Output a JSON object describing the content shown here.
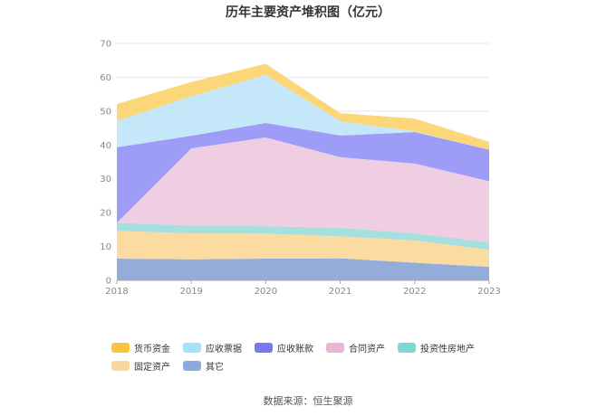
{
  "chart_data": {
    "type": "area",
    "stacked": true,
    "title": "历年主要资产堆积图（亿元）",
    "x": [
      "2018",
      "2019",
      "2020",
      "2021",
      "2022",
      "2023"
    ],
    "ylim": [
      0,
      70
    ],
    "yticks": [
      0,
      10,
      20,
      30,
      40,
      50,
      60,
      70
    ],
    "grid": true,
    "legend_position": "bottom",
    "series": [
      {
        "name": "其它",
        "color": "#93acd9",
        "values": [
          6.4,
          6.2,
          6.4,
          6.5,
          5.2,
          4.0
        ]
      },
      {
        "name": "固定资产",
        "color": "#fbdba0",
        "values": [
          8.2,
          7.7,
          7.4,
          6.5,
          6.6,
          5.0
        ]
      },
      {
        "name": "投资性房地产",
        "color": "#a6e0de",
        "values": [
          2.4,
          2.3,
          2.2,
          2.5,
          2.1,
          2.2
        ]
      },
      {
        "name": "合同资产",
        "color": "#efcde3",
        "values": [
          0.0,
          22.8,
          26.2,
          20.9,
          20.6,
          18.1
        ]
      },
      {
        "name": "应收账款",
        "color": "#9d9cf6",
        "values": [
          22.3,
          3.7,
          4.3,
          6.4,
          9.3,
          9.3
        ]
      },
      {
        "name": "应收票据",
        "color": "#c4e8fa",
        "values": [
          7.8,
          11.7,
          14.2,
          4.2,
          0.2,
          0.0
        ]
      },
      {
        "name": "货币资金",
        "color": "#fcd77a",
        "values": [
          5.0,
          4.2,
          3.3,
          2.4,
          3.8,
          2.3
        ]
      }
    ]
  },
  "legend": {
    "items": [
      {
        "label": "货币资金",
        "color": "#fbc33e"
      },
      {
        "label": "应收票据",
        "color": "#a8e0fb"
      },
      {
        "label": "应收账款",
        "color": "#7879ef"
      },
      {
        "label": "合同资产",
        "color": "#e9b7d6"
      },
      {
        "label": "投资性房地产",
        "color": "#7fd6d2"
      },
      {
        "label": "固定资产",
        "color": "#fcd79b"
      },
      {
        "label": "其它",
        "color": "#8da8da"
      }
    ]
  },
  "source": "数据来源：恒生聚源"
}
